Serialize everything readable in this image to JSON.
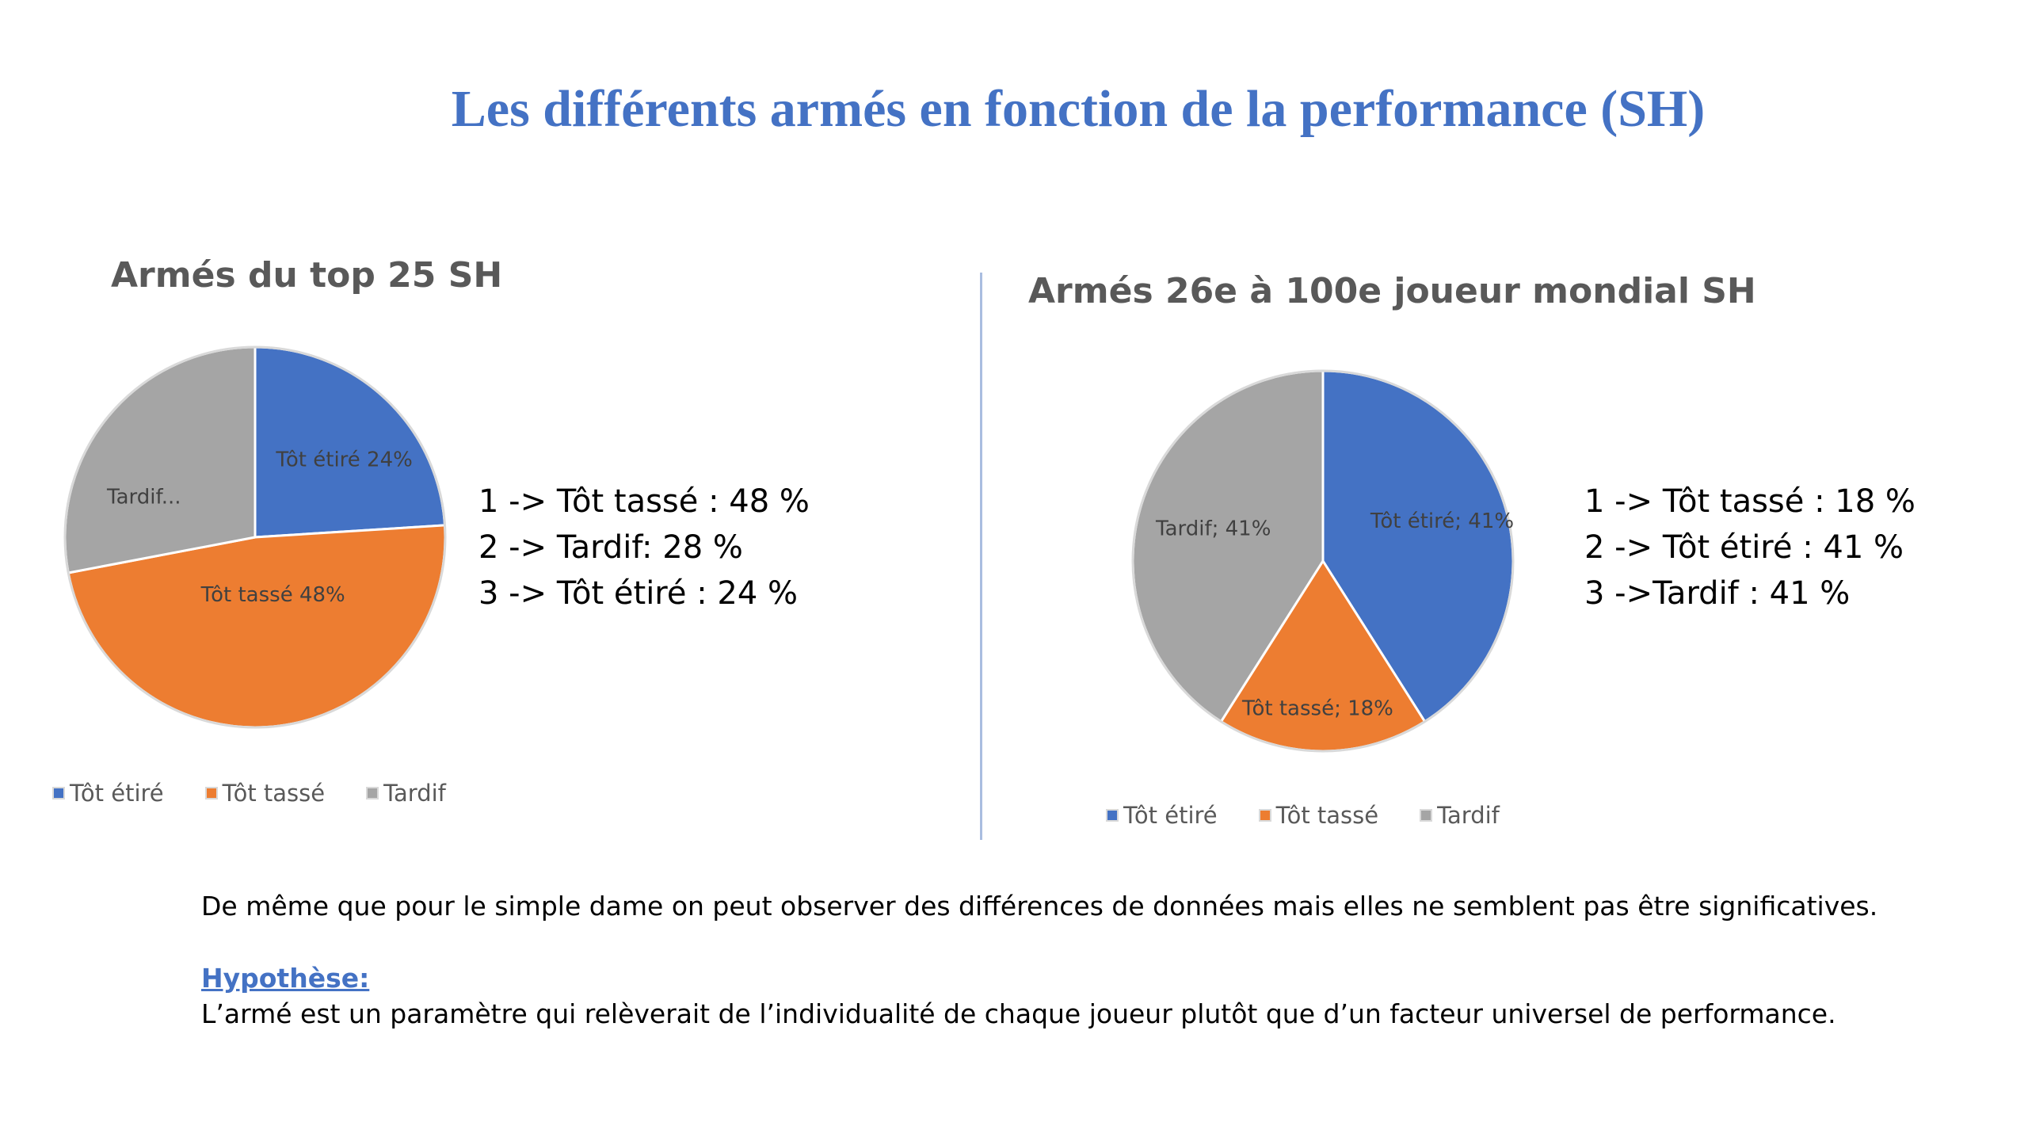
{
  "title": "Les différents armés en fonction de la performance (SH)",
  "colors": {
    "title": "#4472c4",
    "tot_etire": "#4472c4",
    "tot_tasse": "#ed7d31",
    "tardif": "#a5a5a5"
  },
  "chart_data": [
    {
      "type": "pie",
      "title": "Armés du top 25 SH",
      "categories": [
        "Tôt étiré",
        "Tôt tassé",
        "Tardif"
      ],
      "values": [
        24,
        48,
        28
      ],
      "slice_labels": [
        "Tôt étiré 24%",
        "Tôt tassé 48%",
        "Tardif..."
      ],
      "colors": [
        "#4472c4",
        "#ed7d31",
        "#a5a5a5"
      ],
      "legend": [
        "Tôt étiré",
        "Tôt tassé",
        "Tardif"
      ],
      "legend_position": "bottom"
    },
    {
      "type": "pie",
      "title": "Armés 26e à 100e joueur mondial SH",
      "categories": [
        "Tôt étiré",
        "Tôt tassé",
        "Tardif"
      ],
      "values": [
        41,
        18,
        41
      ],
      "slice_labels": [
        "Tôt étiré; 41%",
        "Tôt tassé; 18%",
        "Tardif; 41%"
      ],
      "colors": [
        "#4472c4",
        "#ed7d31",
        "#a5a5a5"
      ],
      "legend": [
        "Tôt étiré",
        "Tôt tassé",
        "Tardif"
      ],
      "legend_position": "bottom"
    }
  ],
  "ranking1": [
    "1 -> Tôt tassé : 48 %",
    "2 -> Tardif: 28 %",
    "3 -> Tôt étiré : 24 %"
  ],
  "ranking2": [
    "1 -> Tôt tassé : 18 %",
    "2 -> Tôt étiré : 41 %",
    "3 ->Tardif : 41 %"
  ],
  "conclusion": "De même que pour le simple dame on peut observer des différences de données mais elles ne semblent pas être significatives.",
  "hypothesis_heading": "Hypothèse:",
  "hypothesis_text": "L’armé est un paramètre qui relèverait de l’individualité de chaque joueur plutôt que d’un facteur universel de performance."
}
